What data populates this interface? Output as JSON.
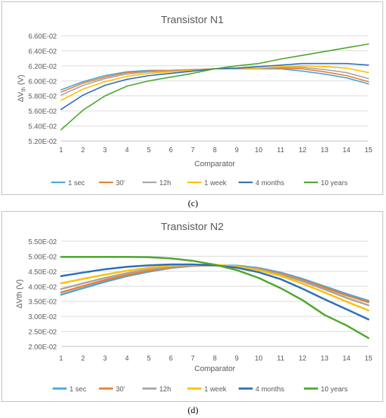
{
  "chart_data": [
    {
      "type": "line",
      "title": "Transistor N1",
      "xlabel": "Comparator",
      "ylabel": "ΔVth (V)",
      "ylabel_main": "ΔV",
      "ylabel_sub": "th",
      "ylabel_unit": " (V)",
      "x": [
        1,
        2,
        3,
        4,
        5,
        6,
        7,
        8,
        9,
        10,
        11,
        12,
        13,
        14,
        15
      ],
      "ylim": [
        0.052,
        0.066
      ],
      "yticks": [
        0.052,
        0.054,
        0.056,
        0.058,
        0.06,
        0.062,
        0.064,
        0.066
      ],
      "ytick_labels": [
        "5.20E-02",
        "5.40E-02",
        "5.60E-02",
        "5.80E-02",
        "6.00E-02",
        "6.20E-02",
        "6.40E-02",
        "6.60E-02"
      ],
      "grid": true,
      "legend_position": "bottom",
      "series": [
        {
          "name": "1 sec",
          "color": "#4aa8d8",
          "values": [
            0.0588,
            0.0599,
            0.0607,
            0.0612,
            0.0614,
            0.0614,
            0.0615,
            0.0616,
            0.0616,
            0.0616,
            0.0616,
            0.0613,
            0.0609,
            0.0604,
            0.0596
          ]
        },
        {
          "name": "30'",
          "color": "#ed7d31",
          "values": [
            0.0585,
            0.0597,
            0.0605,
            0.0611,
            0.0613,
            0.0614,
            0.0615,
            0.0616,
            0.0616,
            0.0616,
            0.0617,
            0.0616,
            0.0612,
            0.0607,
            0.0599
          ]
        },
        {
          "name": "12h",
          "color": "#a5a5a5",
          "values": [
            0.0581,
            0.0594,
            0.0603,
            0.0609,
            0.0612,
            0.0613,
            0.0614,
            0.0616,
            0.0616,
            0.0616,
            0.0618,
            0.0618,
            0.0615,
            0.0611,
            0.0603
          ]
        },
        {
          "name": "1 week",
          "color": "#ffc000",
          "values": [
            0.0574,
            0.0589,
            0.0599,
            0.0606,
            0.061,
            0.0612,
            0.0614,
            0.0616,
            0.0617,
            0.0617,
            0.0619,
            0.062,
            0.0619,
            0.0617,
            0.0611
          ]
        },
        {
          "name": "4 months",
          "color": "#2f6eba",
          "values": [
            0.0562,
            0.0581,
            0.0594,
            0.0602,
            0.0607,
            0.061,
            0.0613,
            0.0616,
            0.0617,
            0.0619,
            0.0621,
            0.0623,
            0.0623,
            0.0623,
            0.0621
          ]
        },
        {
          "name": "10 years",
          "color": "#4ea72e",
          "values": [
            0.0535,
            0.0561,
            0.058,
            0.0593,
            0.06,
            0.0605,
            0.061,
            0.0616,
            0.062,
            0.0623,
            0.0629,
            0.0634,
            0.0639,
            0.0644,
            0.0649
          ]
        }
      ]
    },
    {
      "type": "line",
      "title": "Transistor N2",
      "xlabel": "Comparator",
      "ylabel": "ΔVth (V)",
      "x": [
        1,
        2,
        3,
        4,
        5,
        6,
        7,
        8,
        9,
        10,
        11,
        12,
        13,
        14,
        15
      ],
      "ylim": [
        0.02,
        0.055
      ],
      "yticks": [
        0.02,
        0.025,
        0.03,
        0.035,
        0.04,
        0.045,
        0.05,
        0.055
      ],
      "ytick_labels": [
        "2.00E-02",
        "2.50E-02",
        "3.00E-02",
        "3.50E-02",
        "4.00E-02",
        "4.50E-02",
        "5.00E-02",
        "5.50E-02"
      ],
      "grid": true,
      "legend_position": "bottom",
      "series": [
        {
          "name": "1 sec",
          "color": "#4aa8d8",
          "values": [
            0.0372,
            0.0394,
            0.0415,
            0.0434,
            0.0449,
            0.0461,
            0.0468,
            0.047,
            0.0469,
            0.0461,
            0.0446,
            0.0425,
            0.04,
            0.0375,
            0.0352
          ]
        },
        {
          "name": "30'",
          "color": "#ed7d31",
          "values": [
            0.038,
            0.0401,
            0.0421,
            0.0438,
            0.0452,
            0.0463,
            0.0469,
            0.047,
            0.0467,
            0.0458,
            0.0443,
            0.0421,
            0.0396,
            0.037,
            0.0347
          ]
        },
        {
          "name": "12h",
          "color": "#a5a5a5",
          "values": [
            0.0391,
            0.041,
            0.0428,
            0.0444,
            0.0457,
            0.0466,
            0.0471,
            0.0471,
            0.0467,
            0.0457,
            0.044,
            0.0417,
            0.039,
            0.0362,
            0.0337
          ]
        },
        {
          "name": "1 week",
          "color": "#ffc000",
          "values": [
            0.041,
            0.0425,
            0.0439,
            0.0452,
            0.0462,
            0.0469,
            0.0472,
            0.0472,
            0.0466,
            0.0454,
            0.0435,
            0.0409,
            0.038,
            0.0349,
            0.032
          ]
        },
        {
          "name": "4 months",
          "color": "#2f6eba",
          "values": [
            0.0434,
            0.0446,
            0.0457,
            0.0465,
            0.047,
            0.0473,
            0.0473,
            0.047,
            0.0462,
            0.0447,
            0.0424,
            0.0392,
            0.0357,
            0.0324,
            0.029
          ]
        },
        {
          "name": "10 years",
          "color": "#4ea72e",
          "values": [
            0.0498,
            0.0498,
            0.0498,
            0.0498,
            0.0497,
            0.0493,
            0.0485,
            0.0472,
            0.0454,
            0.0428,
            0.0394,
            0.0354,
            0.0305,
            0.027,
            0.0228
          ]
        }
      ]
    }
  ],
  "captions": [
    "(c)",
    "(d)"
  ]
}
